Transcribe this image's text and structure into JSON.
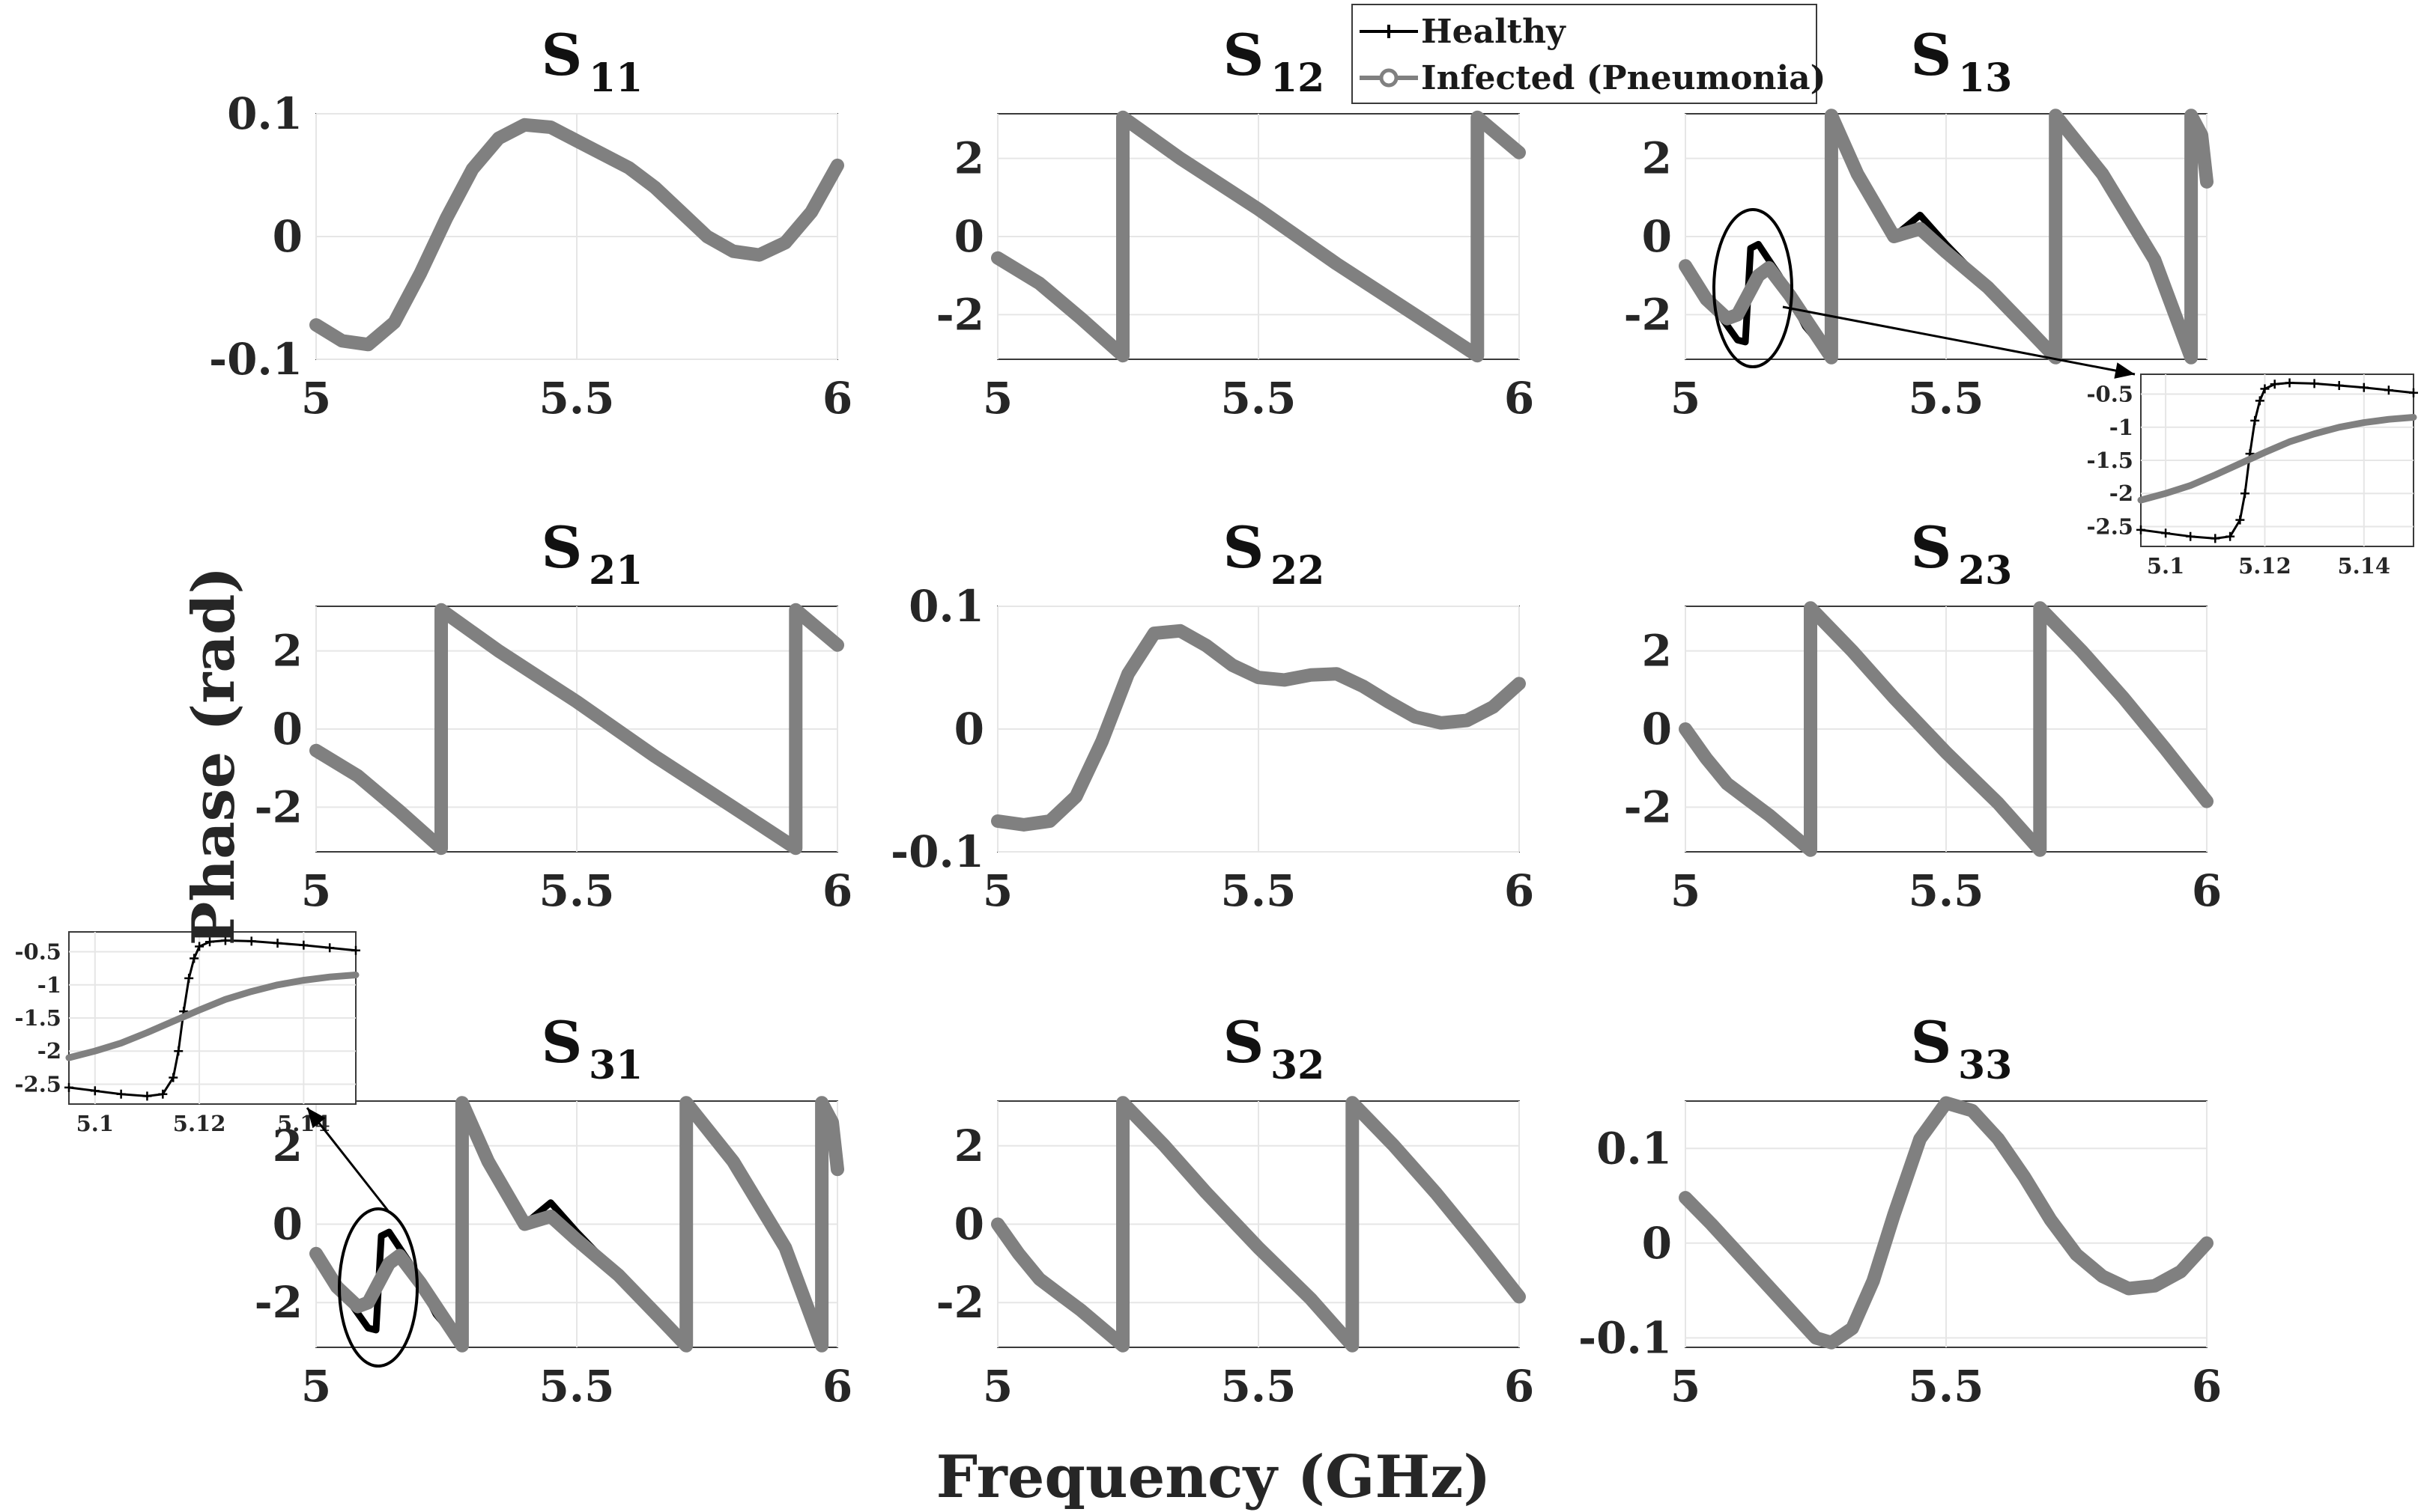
{
  "figure": {
    "xlabel": "Frequency (GHz)",
    "ylabel": "Phase (rad)",
    "legend": {
      "placement": "top-center",
      "entries": [
        {
          "label": "Healthy",
          "color": "#000000",
          "marker": "plus"
        },
        {
          "label": "Infected (Pneumonia)",
          "color": "#808080",
          "marker": "circle"
        }
      ]
    }
  },
  "chart_data": [
    {
      "type": "line",
      "title": "S",
      "subscript": "11",
      "xlim": [
        5,
        6
      ],
      "ylim": [
        -0.1,
        0.1
      ],
      "xticks": [
        5,
        5.5,
        6
      ],
      "xtick_labels": [
        "5",
        "5.5",
        "6"
      ],
      "yticks": [
        -0.1,
        0,
        0.1
      ],
      "ytick_labels": [
        "-0.1",
        "0",
        "0.1"
      ],
      "series": [
        {
          "name": "Infected (Pneumonia)",
          "x": [
            5,
            5.05,
            5.1,
            5.15,
            5.2,
            5.25,
            5.3,
            5.35,
            5.4,
            5.45,
            5.5,
            5.55,
            5.6,
            5.65,
            5.7,
            5.75,
            5.8,
            5.85,
            5.9,
            5.95,
            6
          ],
          "y": [
            -0.072,
            -0.085,
            -0.088,
            -0.07,
            -0.03,
            0.015,
            0.055,
            0.08,
            0.091,
            0.089,
            0.078,
            0.067,
            0.056,
            0.04,
            0.02,
            0.0,
            -0.012,
            -0.015,
            -0.005,
            0.02,
            0.058
          ]
        }
      ]
    },
    {
      "type": "line",
      "title": "S",
      "subscript": "12",
      "xlim": [
        5,
        6
      ],
      "ylim": [
        -3.1416,
        3.1416
      ],
      "xticks": [
        5,
        5.5,
        6
      ],
      "xtick_labels": [
        "5",
        "5.5",
        "6"
      ],
      "yticks": [
        -2,
        0,
        2
      ],
      "ytick_labels": [
        "-2",
        "0",
        "2"
      ],
      "series": [
        {
          "name": "Infected (Pneumonia)",
          "x": [
            5,
            5.08,
            5.16,
            5.24,
            5.24,
            5.35,
            5.5,
            5.65,
            5.8,
            5.92,
            5.92,
            6
          ],
          "y": [
            -0.55,
            -1.2,
            -2.1,
            -3.05,
            3.05,
            2.0,
            0.7,
            -0.7,
            -2.0,
            -3.05,
            3.05,
            2.15
          ]
        }
      ]
    },
    {
      "type": "line",
      "title": "S",
      "subscript": "13",
      "xlim": [
        5,
        6
      ],
      "ylim": [
        -3.1416,
        3.1416
      ],
      "xticks": [
        5,
        5.5,
        6
      ],
      "xtick_labels": [
        "5",
        "5.5",
        "6"
      ],
      "yticks": [
        -2,
        0,
        2
      ],
      "ytick_labels": [
        "-2",
        "0",
        "2"
      ],
      "series": [
        {
          "name": "Healthy",
          "x": [
            5,
            5.06,
            5.1,
            5.115,
            5.125,
            5.14,
            5.18,
            5.23,
            5.28,
            5.28,
            5.33,
            5.4,
            5.45,
            5.5,
            5.58,
            5.66,
            5.71,
            5.71,
            5.8,
            5.9,
            5.97,
            5.97,
            5.99,
            6
          ],
          "y": [
            -0.75,
            -1.9,
            -2.65,
            -2.7,
            -0.3,
            -0.2,
            -1.0,
            -2.3,
            -3.1,
            3.1,
            1.6,
            0.0,
            0.55,
            -0.2,
            -1.3,
            -2.4,
            -3.1,
            3.1,
            1.6,
            -0.6,
            -3.1,
            3.1,
            2.6,
            1.4
          ]
        },
        {
          "name": "Infected (Pneumonia)",
          "x": [
            5,
            5.04,
            5.08,
            5.1,
            5.12,
            5.14,
            5.16,
            5.2,
            5.24,
            5.28,
            5.28,
            5.33,
            5.4,
            5.45,
            5.5,
            5.58,
            5.66,
            5.71,
            5.71,
            5.8,
            5.9,
            5.97,
            5.97,
            5.99,
            6
          ],
          "y": [
            -0.75,
            -1.6,
            -2.1,
            -2.0,
            -1.5,
            -1.0,
            -0.8,
            -1.5,
            -2.3,
            -3.1,
            3.1,
            1.6,
            0.0,
            0.2,
            -0.4,
            -1.3,
            -2.4,
            -3.1,
            3.1,
            1.6,
            -0.6,
            -3.1,
            3.1,
            2.6,
            1.4
          ]
        }
      ]
    },
    {
      "type": "line",
      "title": "S",
      "subscript": "21",
      "xlim": [
        5,
        6
      ],
      "ylim": [
        -3.1416,
        3.1416
      ],
      "xticks": [
        5,
        5.5,
        6
      ],
      "xtick_labels": [
        "5",
        "5.5",
        "6"
      ],
      "yticks": [
        -2,
        0,
        2
      ],
      "ytick_labels": [
        "-2",
        "0",
        "2"
      ],
      "series": [
        {
          "name": "Infected (Pneumonia)",
          "x": [
            5,
            5.08,
            5.16,
            5.24,
            5.24,
            5.35,
            5.5,
            5.65,
            5.8,
            5.92,
            5.92,
            6
          ],
          "y": [
            -0.55,
            -1.2,
            -2.1,
            -3.05,
            3.05,
            2.0,
            0.7,
            -0.7,
            -2.0,
            -3.05,
            3.05,
            2.15
          ]
        }
      ]
    },
    {
      "type": "line",
      "title": "S",
      "subscript": "22",
      "xlim": [
        5,
        6
      ],
      "ylim": [
        -0.1,
        0.1
      ],
      "xticks": [
        5,
        5.5,
        6
      ],
      "xtick_labels": [
        "5",
        "5.5",
        "6"
      ],
      "yticks": [
        -0.1,
        0,
        0.1
      ],
      "ytick_labels": [
        "-0.1",
        "0",
        "0.1"
      ],
      "series": [
        {
          "name": "Infected (Pneumonia)",
          "x": [
            5,
            5.05,
            5.1,
            5.15,
            5.2,
            5.25,
            5.3,
            5.35,
            5.4,
            5.45,
            5.5,
            5.55,
            5.6,
            5.65,
            5.7,
            5.75,
            5.8,
            5.85,
            5.9,
            5.95,
            6
          ],
          "y": [
            -0.075,
            -0.078,
            -0.075,
            -0.055,
            -0.01,
            0.045,
            0.078,
            0.08,
            0.068,
            0.052,
            0.042,
            0.04,
            0.044,
            0.045,
            0.035,
            0.022,
            0.01,
            0.005,
            0.007,
            0.018,
            0.037
          ]
        }
      ]
    },
    {
      "type": "line",
      "title": "S",
      "subscript": "23",
      "xlim": [
        5,
        6
      ],
      "ylim": [
        -3.1416,
        3.1416
      ],
      "xticks": [
        5,
        5.5,
        6
      ],
      "xtick_labels": [
        "5",
        "5.5",
        "6"
      ],
      "yticks": [
        -2,
        0,
        2
      ],
      "ytick_labels": [
        "-2",
        "0",
        "2"
      ],
      "series": [
        {
          "name": "Infected (Pneumonia)",
          "x": [
            5,
            5.04,
            5.08,
            5.12,
            5.16,
            5.24,
            5.24,
            5.32,
            5.4,
            5.5,
            5.6,
            5.68,
            5.68,
            5.76,
            5.84,
            5.92,
            6
          ],
          "y": [
            0.0,
            -0.75,
            -1.4,
            -1.8,
            -2.2,
            -3.1,
            3.1,
            2.0,
            0.8,
            -0.6,
            -1.9,
            -3.1,
            3.1,
            2.0,
            0.8,
            -0.5,
            -1.85
          ]
        }
      ]
    },
    {
      "type": "line",
      "title": "S",
      "subscript": "31",
      "xlim": [
        5,
        6
      ],
      "ylim": [
        -3.1416,
        3.1416
      ],
      "xticks": [
        5,
        5.5,
        6
      ],
      "xtick_labels": [
        "5",
        "5.5",
        "6"
      ],
      "yticks": [
        -2,
        0,
        2
      ],
      "ytick_labels": [
        "-2",
        "0",
        "2"
      ],
      "series": [
        {
          "name": "Healthy",
          "x": [
            5,
            5.06,
            5.1,
            5.115,
            5.125,
            5.14,
            5.18,
            5.23,
            5.28,
            5.28,
            5.33,
            5.4,
            5.45,
            5.5,
            5.58,
            5.66,
            5.71,
            5.71,
            5.8,
            5.9,
            5.97,
            5.97,
            5.99,
            6
          ],
          "y": [
            -0.75,
            -1.9,
            -2.65,
            -2.7,
            -0.3,
            -0.2,
            -1.0,
            -2.3,
            -3.1,
            3.1,
            1.6,
            0.0,
            0.55,
            -0.2,
            -1.3,
            -2.4,
            -3.1,
            3.1,
            1.6,
            -0.6,
            -3.1,
            3.1,
            2.6,
            1.4
          ]
        },
        {
          "name": "Infected (Pneumonia)",
          "x": [
            5,
            5.04,
            5.08,
            5.1,
            5.12,
            5.14,
            5.16,
            5.2,
            5.24,
            5.28,
            5.28,
            5.33,
            5.4,
            5.45,
            5.5,
            5.58,
            5.66,
            5.71,
            5.71,
            5.8,
            5.9,
            5.97,
            5.97,
            5.99,
            6
          ],
          "y": [
            -0.75,
            -1.6,
            -2.1,
            -2.0,
            -1.5,
            -1.0,
            -0.8,
            -1.5,
            -2.3,
            -3.1,
            3.1,
            1.6,
            0.0,
            0.2,
            -0.4,
            -1.3,
            -2.4,
            -3.1,
            3.1,
            1.6,
            -0.6,
            -3.1,
            3.1,
            2.6,
            1.4
          ]
        }
      ]
    },
    {
      "type": "line",
      "title": "S",
      "subscript": "32",
      "xlim": [
        5,
        6
      ],
      "ylim": [
        -3.1416,
        3.1416
      ],
      "xticks": [
        5,
        5.5,
        6
      ],
      "xtick_labels": [
        "5",
        "5.5",
        "6"
      ],
      "yticks": [
        -2,
        0,
        2
      ],
      "ytick_labels": [
        "-2",
        "0",
        "2"
      ],
      "series": [
        {
          "name": "Infected (Pneumonia)",
          "x": [
            5,
            5.04,
            5.08,
            5.12,
            5.16,
            5.24,
            5.24,
            5.32,
            5.4,
            5.5,
            5.6,
            5.68,
            5.68,
            5.76,
            5.84,
            5.92,
            6
          ],
          "y": [
            0.0,
            -0.75,
            -1.4,
            -1.8,
            -2.2,
            -3.1,
            3.1,
            2.0,
            0.8,
            -0.6,
            -1.9,
            -3.1,
            3.1,
            2.0,
            0.8,
            -0.5,
            -1.85
          ]
        }
      ]
    },
    {
      "type": "line",
      "title": "S",
      "subscript": "33",
      "xlim": [
        5,
        6
      ],
      "ylim": [
        -0.11,
        0.15
      ],
      "xticks": [
        5,
        5.5,
        6
      ],
      "xtick_labels": [
        "5",
        "5.5",
        "6"
      ],
      "yticks": [
        -0.1,
        0,
        0.1
      ],
      "ytick_labels": [
        "-0.1",
        "0",
        "0.1"
      ],
      "series": [
        {
          "name": "Infected (Pneumonia)",
          "x": [
            5,
            5.05,
            5.1,
            5.15,
            5.2,
            5.25,
            5.28,
            5.32,
            5.36,
            5.4,
            5.45,
            5.5,
            5.55,
            5.6,
            5.65,
            5.7,
            5.75,
            5.8,
            5.85,
            5.9,
            5.95,
            6
          ],
          "y": [
            0.048,
            0.02,
            -0.01,
            -0.04,
            -0.07,
            -0.1,
            -0.105,
            -0.09,
            -0.04,
            0.03,
            0.11,
            0.148,
            0.14,
            0.11,
            0.07,
            0.025,
            -0.012,
            -0.035,
            -0.048,
            -0.045,
            -0.03,
            0.0
          ]
        }
      ]
    },
    {
      "type": "line",
      "title": "",
      "role": "inset",
      "xlim": [
        5.095,
        5.15
      ],
      "ylim": [
        -2.8,
        -0.2
      ],
      "xticks": [
        5.1,
        5.12,
        5.14
      ],
      "xtick_labels": [
        "5.1",
        "5.12",
        "5.14"
      ],
      "yticks": [
        -2.5,
        -2,
        -1.5,
        -1,
        -0.5
      ],
      "ytick_labels": [
        "-2.5",
        "-2",
        "-1.5",
        "-1",
        "-0.5"
      ],
      "series": [
        {
          "name": "Healthy",
          "x": [
            5.095,
            5.1,
            5.105,
            5.11,
            5.113,
            5.115,
            5.116,
            5.117,
            5.118,
            5.119,
            5.12,
            5.122,
            5.125,
            5.13,
            5.135,
            5.14,
            5.145,
            5.15
          ],
          "y": [
            -2.55,
            -2.6,
            -2.65,
            -2.68,
            -2.65,
            -2.4,
            -2.0,
            -1.4,
            -0.9,
            -0.6,
            -0.42,
            -0.35,
            -0.33,
            -0.34,
            -0.37,
            -0.4,
            -0.44,
            -0.48
          ]
        },
        {
          "name": "Infected (Pneumonia)",
          "x": [
            5.095,
            5.1,
            5.105,
            5.11,
            5.115,
            5.12,
            5.125,
            5.13,
            5.135,
            5.14,
            5.145,
            5.15
          ],
          "y": [
            -2.1,
            -2.0,
            -1.88,
            -1.72,
            -1.55,
            -1.38,
            -1.22,
            -1.1,
            -1.0,
            -0.93,
            -0.88,
            -0.85
          ]
        }
      ]
    },
    {
      "type": "line",
      "title": "",
      "role": "inset",
      "xlim": [
        5.095,
        5.15
      ],
      "ylim": [
        -2.8,
        -0.2
      ],
      "xticks": [
        5.1,
        5.12,
        5.14
      ],
      "xtick_labels": [
        "5.1",
        "5.12",
        "5.14"
      ],
      "yticks": [
        -2.5,
        -2,
        -1.5,
        -1,
        -0.5
      ],
      "ytick_labels": [
        "-2.5",
        "-2",
        "-1.5",
        "-1",
        "-0.5"
      ],
      "series": [
        {
          "name": "Healthy",
          "x": [
            5.095,
            5.1,
            5.105,
            5.11,
            5.113,
            5.115,
            5.116,
            5.117,
            5.118,
            5.119,
            5.12,
            5.122,
            5.125,
            5.13,
            5.135,
            5.14,
            5.145,
            5.15
          ],
          "y": [
            -2.55,
            -2.6,
            -2.65,
            -2.68,
            -2.65,
            -2.4,
            -2.0,
            -1.4,
            -0.9,
            -0.6,
            -0.42,
            -0.35,
            -0.33,
            -0.34,
            -0.37,
            -0.4,
            -0.44,
            -0.48
          ]
        },
        {
          "name": "Infected (Pneumonia)",
          "x": [
            5.095,
            5.1,
            5.105,
            5.11,
            5.115,
            5.12,
            5.125,
            5.13,
            5.135,
            5.14,
            5.145,
            5.15
          ],
          "y": [
            -2.1,
            -2.0,
            -1.88,
            -1.72,
            -1.55,
            -1.38,
            -1.22,
            -1.1,
            -1.0,
            -0.93,
            -0.88,
            -0.85
          ]
        }
      ]
    }
  ]
}
